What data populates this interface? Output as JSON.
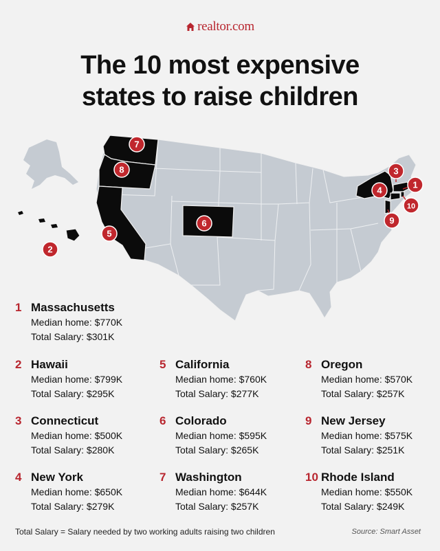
{
  "brand": {
    "name": "realtor.com"
  },
  "title": {
    "line1": "The 10 most expensive",
    "line2": "states to raise children"
  },
  "colors": {
    "accent": "#c0272d",
    "highlight_state": "#0b0b0b",
    "other_states": "#c5cbd2"
  },
  "entries": [
    {
      "rank": "1",
      "state": "Massachusetts",
      "median_home": "Median home: $770K",
      "total_salary": "Total Salary: $301K"
    },
    {
      "rank": "2",
      "state": "Hawaii",
      "median_home": "Median home: $799K",
      "total_salary": "Total Salary: $295K"
    },
    {
      "rank": "3",
      "state": "Connecticut",
      "median_home": "Median home: $500K",
      "total_salary": "Total Salary: $280K"
    },
    {
      "rank": "4",
      "state": "New York",
      "median_home": "Median home: $650K",
      "total_salary": "Total Salary: $279K"
    },
    {
      "rank": "5",
      "state": "California",
      "median_home": "Median home: $760K",
      "total_salary": "Total Salary: $277K"
    },
    {
      "rank": "6",
      "state": "Colorado",
      "median_home": "Median home: $595K",
      "total_salary": "Total Salary: $265K"
    },
    {
      "rank": "7",
      "state": "Washington",
      "median_home": "Median home: $644K",
      "total_salary": "Total Salary: $257K"
    },
    {
      "rank": "8",
      "state": "Oregon",
      "median_home": "Median home: $570K",
      "total_salary": "Total Salary: $257K"
    },
    {
      "rank": "9",
      "state": "New Jersey",
      "median_home": "Median home: $575K",
      "total_salary": "Total Salary: $251K"
    },
    {
      "rank": "10",
      "state": "Rhode Island",
      "median_home": "Median home: $550K",
      "total_salary": "Total Salary: $249K"
    }
  ],
  "footnote": "Total Salary = Salary needed by two working adults raising two children",
  "source": "Source: Smart Asset"
}
